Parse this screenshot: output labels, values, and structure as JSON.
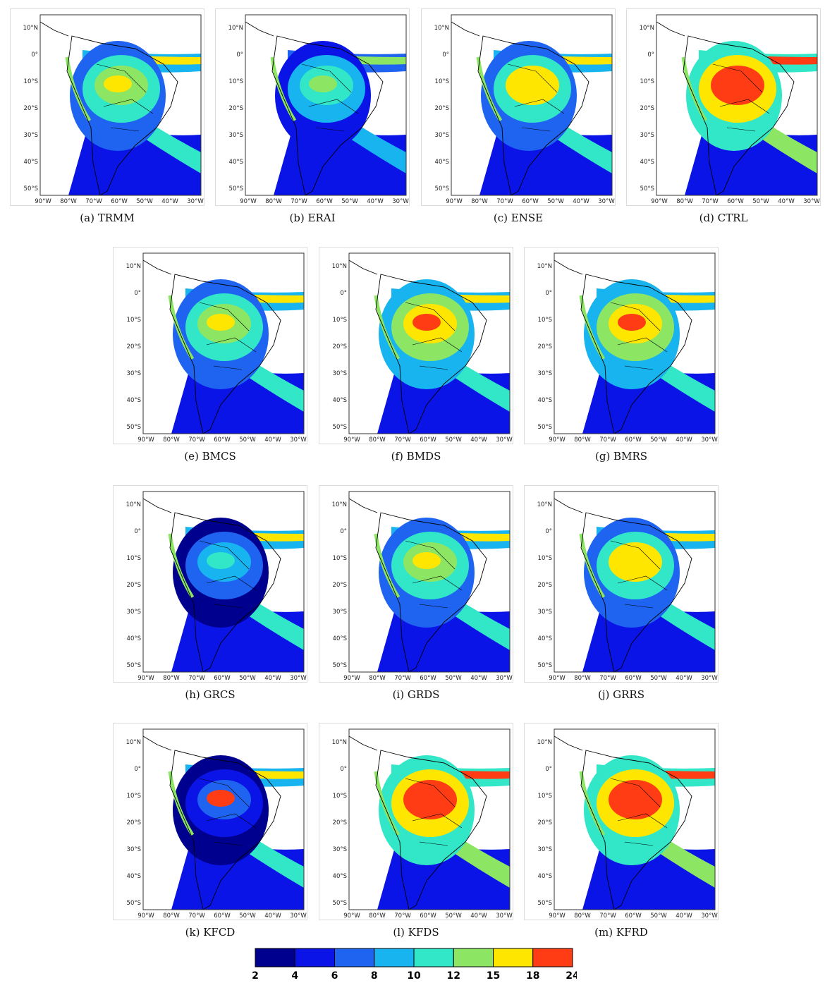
{
  "panels": [
    {
      "caption": "(a) TRMM"
    },
    {
      "caption": "(b) ERAI"
    },
    {
      "caption": "(c) ENSE"
    },
    {
      "caption": "(d) CTRL"
    },
    {
      "caption": "(e) BMCS"
    },
    {
      "caption": "(f) BMDS"
    },
    {
      "caption": "(g) BMRS"
    },
    {
      "caption": "(h) GRCS"
    },
    {
      "caption": "(i) GRDS"
    },
    {
      "caption": "(j) GRRS"
    },
    {
      "caption": "(k) KFCD"
    },
    {
      "caption": "(l) KFDS"
    },
    {
      "caption": "(m) KFRD"
    }
  ],
  "lat_ticks": [
    "10°N",
    "0°",
    "10°S",
    "20°S",
    "30°S",
    "40°S",
    "50°S"
  ],
  "lon_ticks": [
    "90°W",
    "80°W",
    "70°W",
    "60°W",
    "50°W",
    "40°W",
    "30°W"
  ],
  "colorbar": {
    "levels": [
      "2",
      "4",
      "6",
      "8",
      "10",
      "12",
      "15",
      "18",
      "24"
    ],
    "colors": [
      "#00008f",
      "#0a14e6",
      "#1e64f0",
      "#18b4f0",
      "#32e6c8",
      "#8ce664",
      "#ffe600",
      "#ff3c14"
    ]
  }
}
